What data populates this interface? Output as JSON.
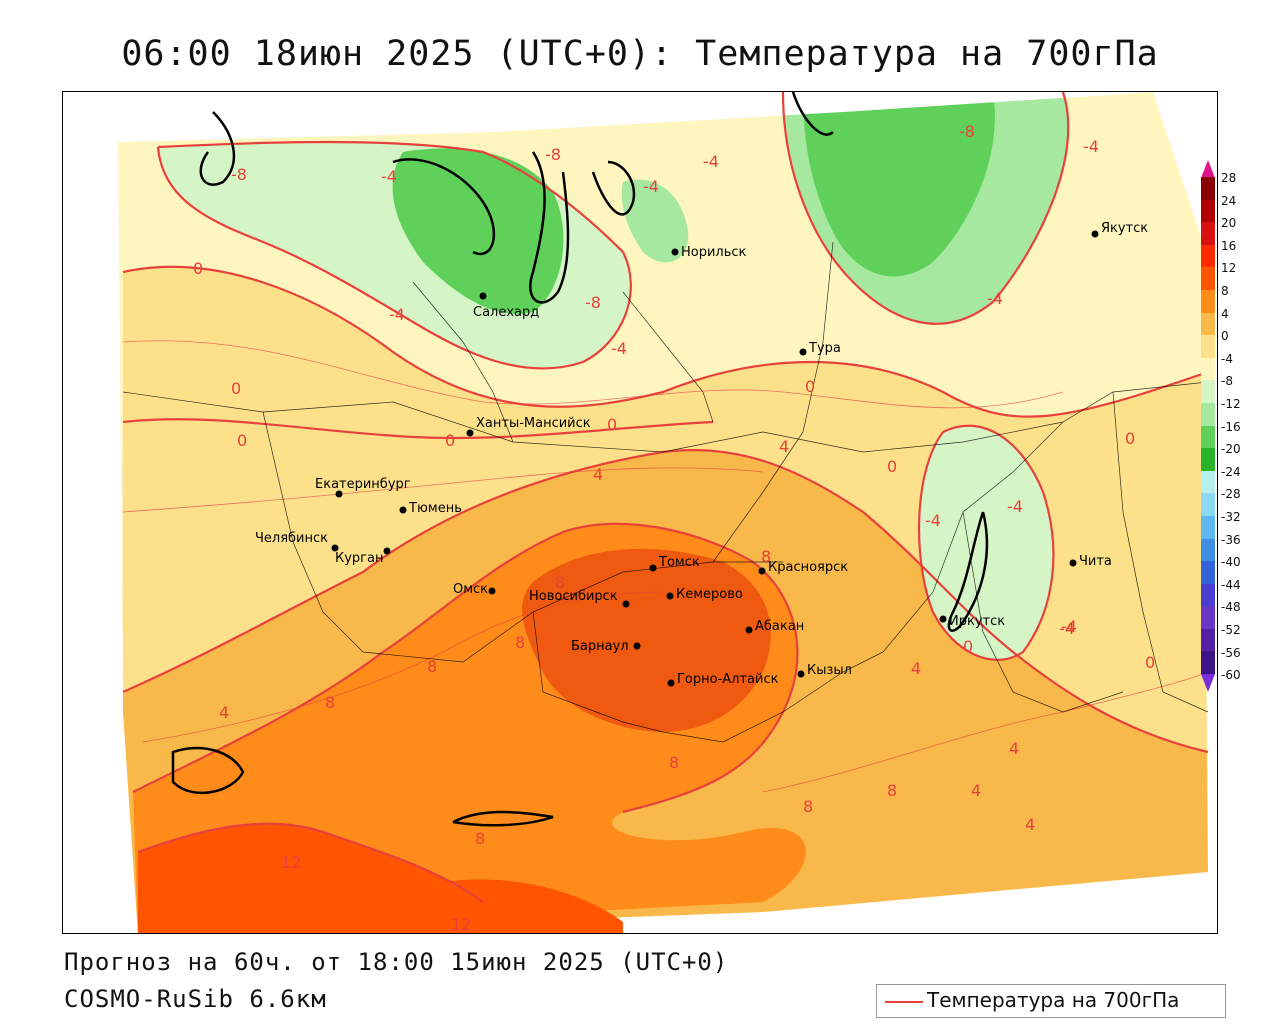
{
  "title": "06:00 18июн 2025 (UTC+0): Температура на 700гПа",
  "forecast": "Прогноз на 60ч. от 18:00 15июн 2025 (UTC+0)",
  "model": "COSMO-RuSib 6.6км",
  "legend": {
    "label": "Температура на 700гПа",
    "color": "#e8413c"
  },
  "scale": {
    "ticks": [
      "28",
      "24",
      "20",
      "16",
      "12",
      "8",
      "4",
      "0",
      "-4",
      "-8",
      "-12",
      "-16",
      "-20",
      "-24",
      "-28",
      "-32",
      "-36",
      "-40",
      "-44",
      "-48",
      "-52",
      "-56",
      "-60"
    ],
    "colors": [
      "#8b0000",
      "#b00000",
      "#d81010",
      "#ff2a00",
      "#ff5500",
      "#ff8c1a",
      "#f9b84a",
      "#fde18a",
      "#fff6bf",
      "#d6f5c7",
      "#a6e8a0",
      "#5fd15a",
      "#28b428",
      "#b7efef",
      "#8cd9f2",
      "#5cb8ee",
      "#3d8ee4",
      "#3364d8",
      "#4a3ed0",
      "#6a36c8",
      "#5520a8",
      "#3d1488"
    ]
  },
  "cities": [
    {
      "name": "Норильск"
    },
    {
      "name": "Салехард"
    },
    {
      "name": "Якутск"
    },
    {
      "name": "Тура"
    },
    {
      "name": "Ханты-Мансийск"
    },
    {
      "name": "Екатеринбург"
    },
    {
      "name": "Тюмень"
    },
    {
      "name": "Челябинск"
    },
    {
      "name": "Курган"
    },
    {
      "name": "Омск"
    },
    {
      "name": "Томск"
    },
    {
      "name": "Новосибирск"
    },
    {
      "name": "Кемерово"
    },
    {
      "name": "Красноярск"
    },
    {
      "name": "Абакан"
    },
    {
      "name": "Барнаул"
    },
    {
      "name": "Горно-Алтайск"
    },
    {
      "name": "Кызыл"
    },
    {
      "name": "Иркутск"
    },
    {
      "name": "Чита"
    }
  ],
  "isolines": [
    "-8",
    "-4",
    "-4",
    "-8",
    "-4",
    "-4",
    "-4",
    "-8",
    "-8",
    "-4",
    "0",
    "-4",
    "0",
    "0",
    "0",
    "0",
    "0",
    "4",
    "4",
    "0",
    "-4",
    "-4",
    "-4",
    "0",
    "0",
    "4",
    "8",
    "8",
    "8",
    "8",
    "8",
    "4",
    "4",
    "4",
    "4",
    "8",
    "8",
    "8",
    "8",
    "12",
    "12",
    "0",
    "-4"
  ]
}
